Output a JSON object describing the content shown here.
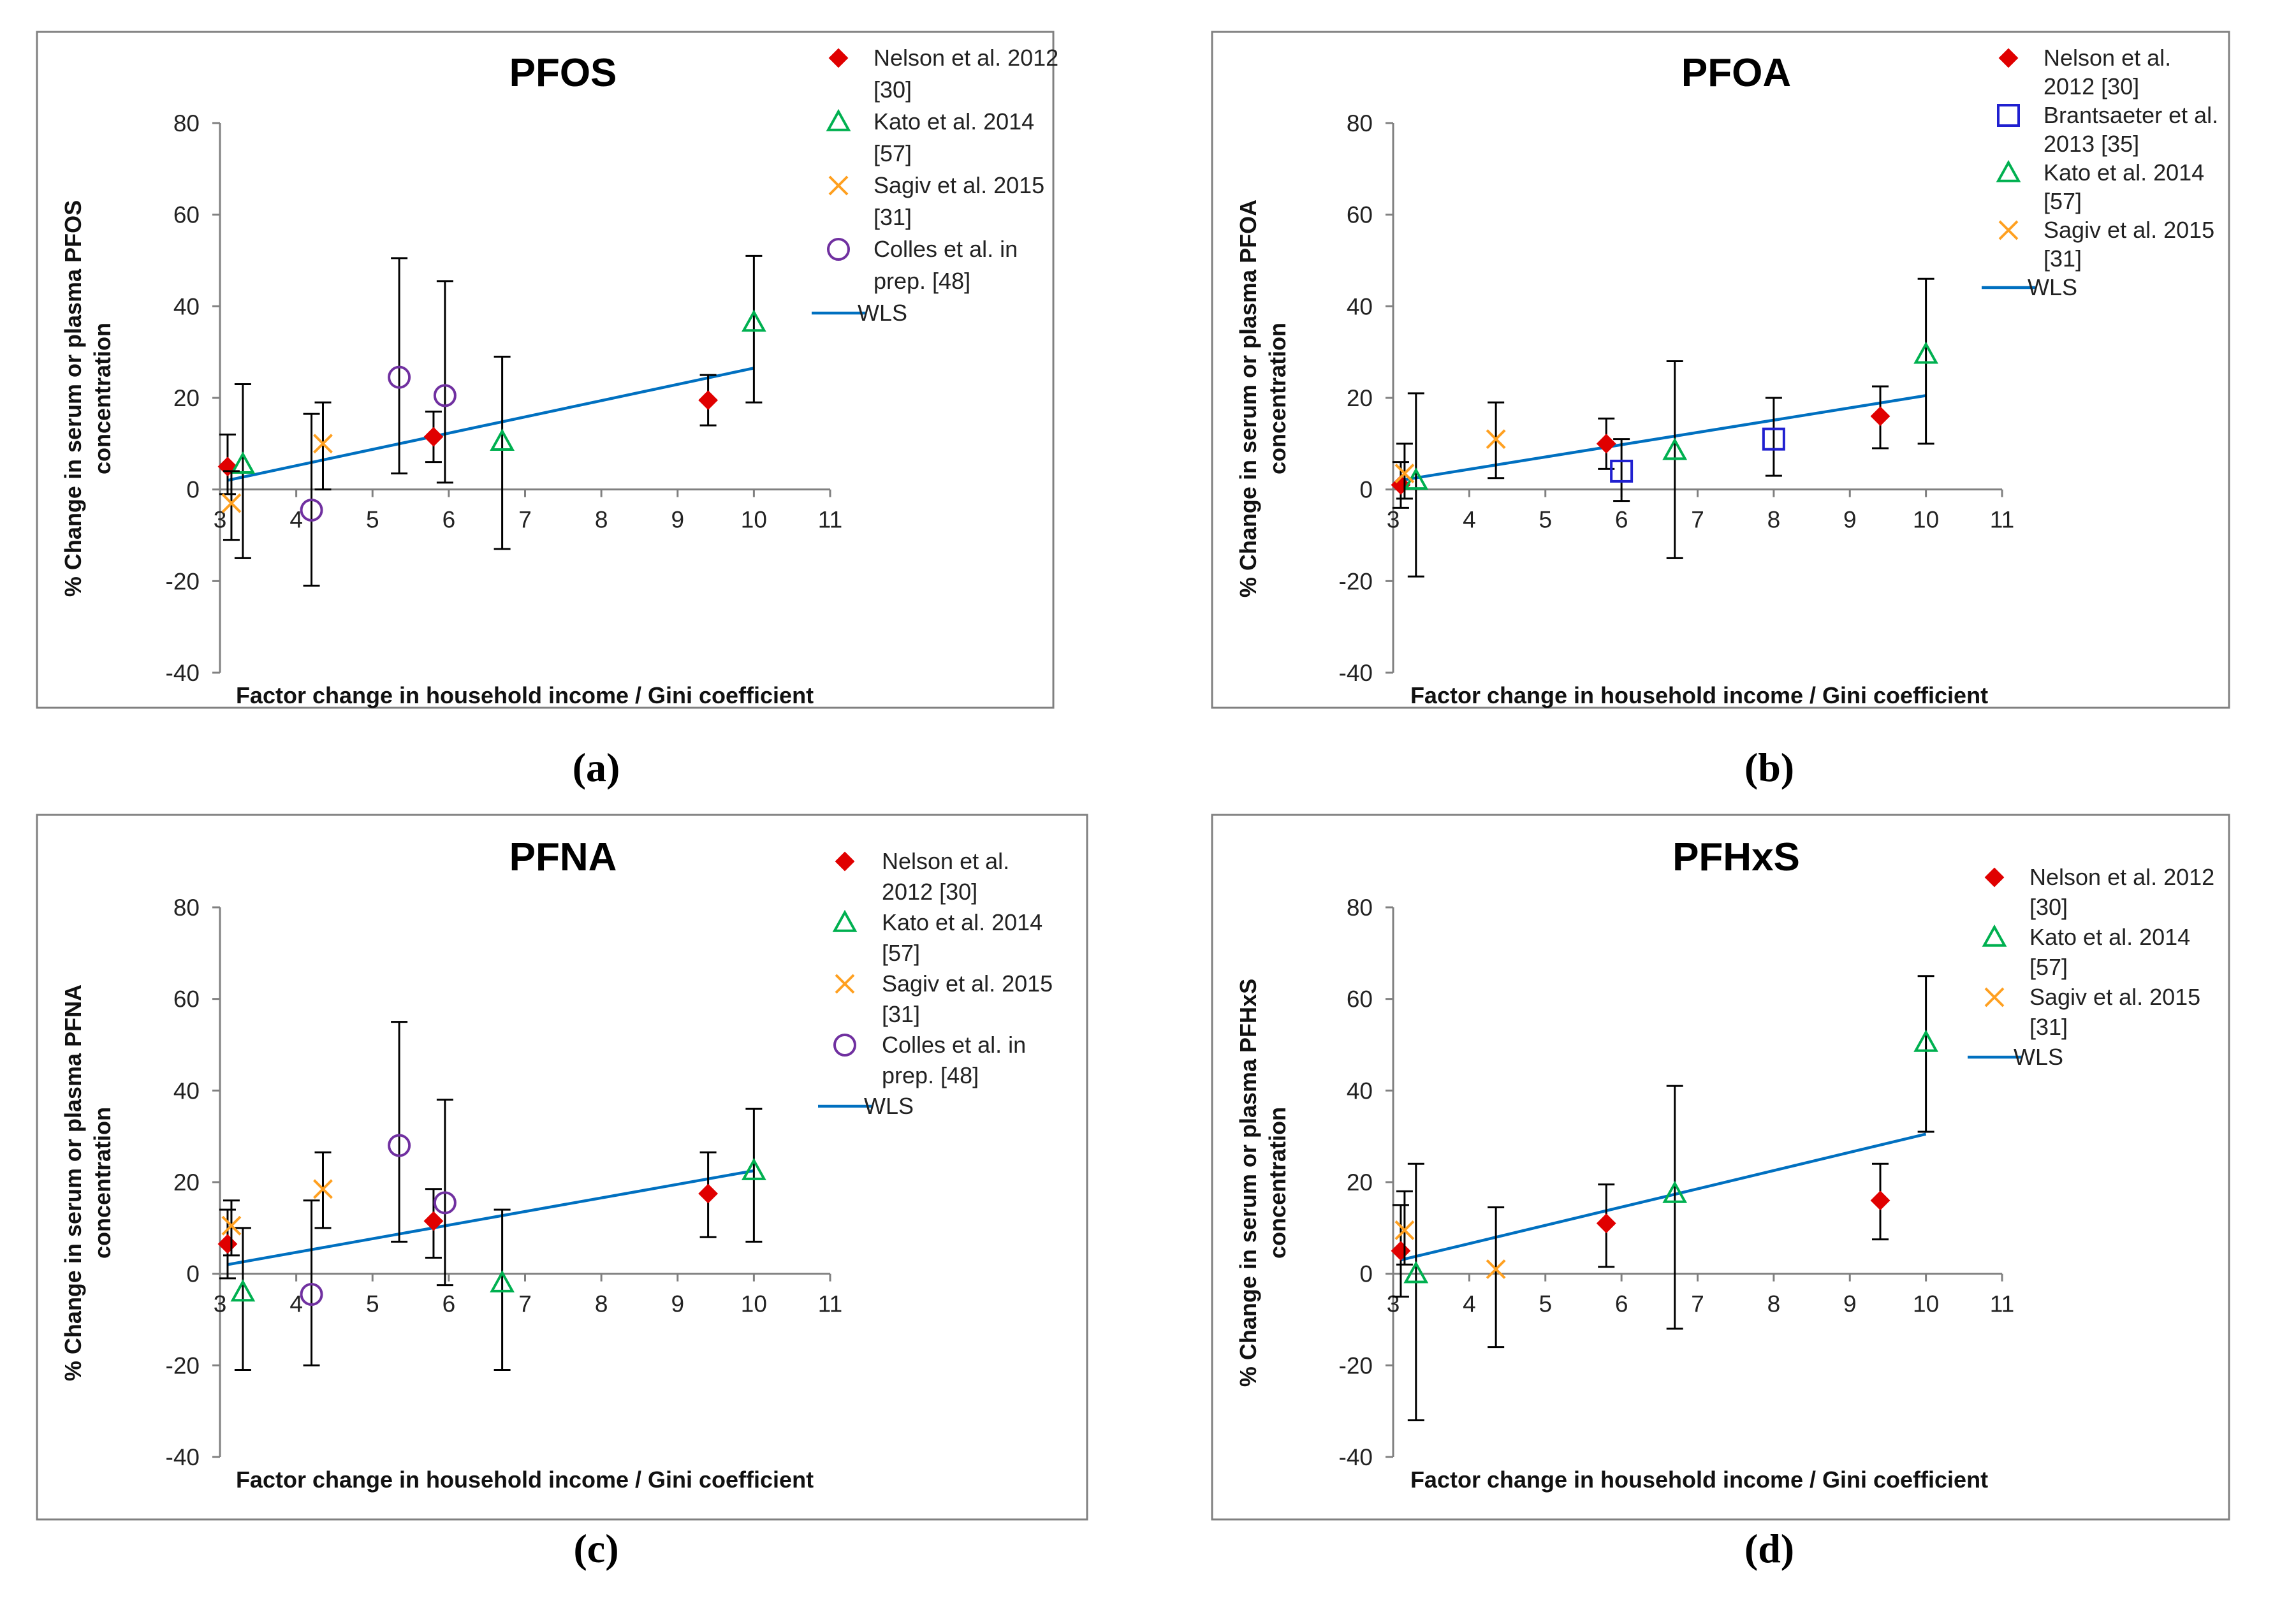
{
  "figure": {
    "colors": {
      "nelson": "#e00000",
      "kato": "#00b050",
      "sagiv": "#ffa020",
      "colles": "#7030a0",
      "brantsaeter": "#2020d0",
      "wls": "#0070c0",
      "errorbar": "#000000",
      "axis": "#808080",
      "frame": "#808080"
    }
  },
  "chart_data": [
    {
      "id": "a",
      "type": "scatter",
      "title": "PFOS",
      "caption": "(a)",
      "xlabel": "Factor change in household income / Gini coefficient",
      "ylabel_lines": [
        "% Change in serum or plasma  PFOS",
        "concentration"
      ],
      "xlim": [
        3,
        11
      ],
      "ylim": [
        -40,
        80
      ],
      "xticks": [
        "3",
        "4",
        "5",
        "6",
        "7",
        "8",
        "9",
        "10",
        "11"
      ],
      "yticks": [
        "-40",
        "-20",
        "0",
        "20",
        "40",
        "60",
        "80"
      ],
      "legend_position": "top-right",
      "series": [
        {
          "name": "Nelson et al. 2012 [30]",
          "legend_lines": [
            "Nelson et al. 2012",
            "[30]"
          ],
          "marker": "diamond",
          "color_key": "nelson",
          "points": [
            {
              "x": 3.1,
              "y": 5,
              "lo": -1,
              "hi": 12
            },
            {
              "x": 5.8,
              "y": 11.5,
              "lo": 6,
              "hi": 17
            },
            {
              "x": 9.4,
              "y": 19.5,
              "lo": 14,
              "hi": 25
            }
          ]
        },
        {
          "name": "Kato et al. 2014 [57]",
          "legend_lines": [
            "Kato et al. 2014",
            "[57]"
          ],
          "marker": "triangle",
          "color_key": "kato",
          "points": [
            {
              "x": 3.3,
              "y": 5.5,
              "lo": -15,
              "hi": 23
            },
            {
              "x": 6.7,
              "y": 10.5,
              "lo": -13,
              "hi": 29
            },
            {
              "x": 10,
              "y": 36.5,
              "lo": 19,
              "hi": 51
            }
          ]
        },
        {
          "name": "Sagiv et al. 2015 [31]",
          "legend_lines": [
            "Sagiv et al. 2015",
            "[31]"
          ],
          "marker": "cross",
          "color_key": "sagiv",
          "points": [
            {
              "x": 3.15,
              "y": -3,
              "lo": -11,
              "hi": 4
            },
            {
              "x": 4.35,
              "y": 10,
              "lo": 0,
              "hi": 19
            }
          ]
        },
        {
          "name": "Colles et al. in prep. [48]",
          "legend_lines": [
            "Colles et al. in",
            "prep. [48]"
          ],
          "marker": "circle",
          "color_key": "colles",
          "points": [
            {
              "x": 4.2,
              "y": -4.5,
              "lo": -21,
              "hi": 16.5
            },
            {
              "x": 5.35,
              "y": 24.5,
              "lo": 3.5,
              "hi": 50.5
            },
            {
              "x": 5.95,
              "y": 20.5,
              "lo": 1.5,
              "hi": 45.5
            }
          ]
        }
      ],
      "wls": {
        "name": "WLS",
        "x": [
          3.1,
          10
        ],
        "y": [
          2,
          26.5
        ]
      }
    },
    {
      "id": "b",
      "type": "scatter",
      "title": "PFOA",
      "caption": "(b)",
      "xlabel": "Factor change in household income / Gini coefficient",
      "ylabel_lines": [
        "% Change in serum or plasma  PFOA",
        "concentration"
      ],
      "xlim": [
        3,
        11
      ],
      "ylim": [
        -40,
        80
      ],
      "xticks": [
        "3",
        "4",
        "5",
        "6",
        "7",
        "8",
        "9",
        "10",
        "11"
      ],
      "yticks": [
        "-40",
        "-20",
        "0",
        "20",
        "40",
        "60",
        "80"
      ],
      "legend_position": "top-right",
      "series": [
        {
          "name": "Nelson et al. 2012 [30]",
          "legend_lines": [
            "Nelson et al.",
            "2012 [30]"
          ],
          "marker": "diamond",
          "color_key": "nelson",
          "points": [
            {
              "x": 3.1,
              "y": 1,
              "lo": -4,
              "hi": 6
            },
            {
              "x": 5.8,
              "y": 10,
              "lo": 4.5,
              "hi": 15.5
            },
            {
              "x": 9.4,
              "y": 16,
              "lo": 9,
              "hi": 22.5
            }
          ]
        },
        {
          "name": "Brantsaeter et al. 2013 [35]",
          "legend_lines": [
            "Brantsaeter et al.",
            "2013 [35]"
          ],
          "marker": "square",
          "color_key": "brantsaeter",
          "points": [
            {
              "x": 6,
              "y": 4,
              "lo": -2.5,
              "hi": 11
            },
            {
              "x": 8,
              "y": 11,
              "lo": 3,
              "hi": 20
            }
          ]
        },
        {
          "name": "Kato et al. 2014 [57]",
          "legend_lines": [
            "Kato et al. 2014",
            "[57]"
          ],
          "marker": "triangle",
          "color_key": "kato",
          "points": [
            {
              "x": 3.3,
              "y": 2,
              "lo": -19,
              "hi": 21
            },
            {
              "x": 6.7,
              "y": 8.5,
              "lo": -15,
              "hi": 28
            },
            {
              "x": 10,
              "y": 29.5,
              "lo": 10,
              "hi": 46
            }
          ]
        },
        {
          "name": "Sagiv et al. 2015 [31]",
          "legend_lines": [
            "Sagiv et al. 2015",
            "[31]"
          ],
          "marker": "cross",
          "color_key": "sagiv",
          "points": [
            {
              "x": 3.15,
              "y": 3.5,
              "lo": -2,
              "hi": 10
            },
            {
              "x": 4.35,
              "y": 11,
              "lo": 2.5,
              "hi": 19
            }
          ]
        }
      ],
      "wls": {
        "name": "WLS",
        "x": [
          3.1,
          10
        ],
        "y": [
          2,
          20.5
        ]
      }
    },
    {
      "id": "c",
      "type": "scatter",
      "title": "PFNA",
      "caption": "(c)",
      "xlabel": "Factor change in household income / Gini coefficient",
      "ylabel_lines": [
        "% Change in serum or plasma  PFNA",
        "concentration"
      ],
      "xlim": [
        3,
        11
      ],
      "ylim": [
        -40,
        80
      ],
      "xticks": [
        "3",
        "4",
        "5",
        "6",
        "7",
        "8",
        "9",
        "10",
        "11"
      ],
      "yticks": [
        "-40",
        "-20",
        "0",
        "20",
        "40",
        "60",
        "80"
      ],
      "legend_position": "top-right",
      "series": [
        {
          "name": "Nelson et al. 2012 [30]",
          "legend_lines": [
            "Nelson et al.",
            "2012 [30]"
          ],
          "marker": "diamond",
          "color_key": "nelson",
          "points": [
            {
              "x": 3.1,
              "y": 6.5,
              "lo": -1,
              "hi": 14
            },
            {
              "x": 5.8,
              "y": 11.5,
              "lo": 3.5,
              "hi": 18.5
            },
            {
              "x": 9.4,
              "y": 17.5,
              "lo": 8,
              "hi": 26.5
            }
          ]
        },
        {
          "name": "Kato et al. 2014 [57]",
          "legend_lines": [
            "Kato et al. 2014",
            "[57]"
          ],
          "marker": "triangle",
          "color_key": "kato",
          "points": [
            {
              "x": 3.3,
              "y": -4,
              "lo": -21,
              "hi": 10
            },
            {
              "x": 6.7,
              "y": -2,
              "lo": -21,
              "hi": 14
            },
            {
              "x": 10,
              "y": 22.5,
              "lo": 7,
              "hi": 36
            }
          ]
        },
        {
          "name": "Sagiv et al. 2015 [31]",
          "legend_lines": [
            "Sagiv et al. 2015",
            "[31]"
          ],
          "marker": "cross",
          "color_key": "sagiv",
          "points": [
            {
              "x": 3.15,
              "y": 10.5,
              "lo": 4,
              "hi": 16
            },
            {
              "x": 4.35,
              "y": 18.5,
              "lo": 10,
              "hi": 26.5
            }
          ]
        },
        {
          "name": "Colles et al. in prep. [48]",
          "legend_lines": [
            "Colles et al. in",
            "prep. [48]"
          ],
          "marker": "circle",
          "color_key": "colles",
          "points": [
            {
              "x": 4.2,
              "y": -4.5,
              "lo": -20,
              "hi": 16
            },
            {
              "x": 5.35,
              "y": 28,
              "lo": 7,
              "hi": 55
            },
            {
              "x": 5.95,
              "y": 15.5,
              "lo": -2.5,
              "hi": 38
            }
          ]
        }
      ],
      "wls": {
        "name": "WLS",
        "x": [
          3.1,
          10
        ],
        "y": [
          2,
          22.5
        ]
      }
    },
    {
      "id": "d",
      "type": "scatter",
      "title": "PFHxS",
      "caption": "(d)",
      "xlabel": "Factor change in household income / Gini coefficient",
      "ylabel_lines": [
        "% Change in serum or plasma  PFHxS",
        "concentration"
      ],
      "xlim": [
        3,
        11
      ],
      "ylim": [
        -40,
        80
      ],
      "xticks": [
        "3",
        "4",
        "5",
        "6",
        "7",
        "8",
        "9",
        "10",
        "11"
      ],
      "yticks": [
        "-40",
        "-20",
        "0",
        "20",
        "40",
        "60",
        "80"
      ],
      "legend_position": "top-right",
      "series": [
        {
          "name": "Nelson et al. 2012 [30]",
          "legend_lines": [
            "Nelson et al. 2012",
            "[30]"
          ],
          "marker": "diamond",
          "color_key": "nelson",
          "points": [
            {
              "x": 3.1,
              "y": 5,
              "lo": -5,
              "hi": 15
            },
            {
              "x": 5.8,
              "y": 11,
              "lo": 1.5,
              "hi": 19.5
            },
            {
              "x": 9.4,
              "y": 16,
              "lo": 7.5,
              "hi": 24
            }
          ]
        },
        {
          "name": "Kato et al. 2014 [57]",
          "legend_lines": [
            "Kato et al. 2014",
            "[57]"
          ],
          "marker": "triangle",
          "color_key": "kato",
          "points": [
            {
              "x": 3.3,
              "y": 0,
              "lo": -32,
              "hi": 24
            },
            {
              "x": 6.7,
              "y": 17.5,
              "lo": -12,
              "hi": 41
            },
            {
              "x": 10,
              "y": 50.5,
              "lo": 31,
              "hi": 65
            }
          ]
        },
        {
          "name": "Sagiv et al. 2015 [31]",
          "legend_lines": [
            "Sagiv et al. 2015",
            "[31]"
          ],
          "marker": "cross",
          "color_key": "sagiv",
          "points": [
            {
              "x": 3.15,
              "y": 9.5,
              "lo": 2,
              "hi": 18
            },
            {
              "x": 4.35,
              "y": 1,
              "lo": -16,
              "hi": 14.5
            }
          ]
        }
      ],
      "wls": {
        "name": "WLS",
        "x": [
          3.1,
          10
        ],
        "y": [
          3,
          30.5
        ]
      }
    }
  ]
}
